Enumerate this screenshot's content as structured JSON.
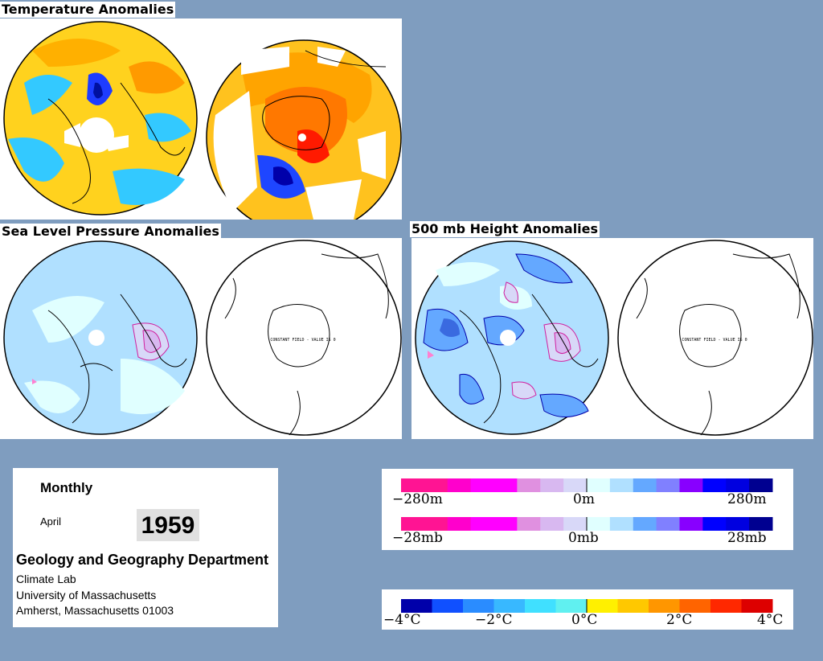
{
  "sections": {
    "temperature_title": "Temperature Anomalies",
    "slp_title": "Sea Level Pressure Anomalies",
    "height_title": "500 mb Height Anomalies"
  },
  "maps": {
    "constant_field_note": "CONSTANT FIELD - VALUE IS 0"
  },
  "info": {
    "period": "Monthly",
    "month": "April",
    "year": "1959",
    "department": "Geology and Geography Department",
    "lab": "Climate Lab",
    "university": "University of Massachusetts",
    "address": "Amherst, Massachusetts 01003"
  },
  "height_legend": {
    "labels": [
      "−280m",
      "0m",
      "280m"
    ],
    "colors": [
      "#ff1493",
      "#ff1493",
      "#ff00cc",
      "#ff00ff",
      "#ff00ff",
      "#e090e0",
      "#d8b8f0",
      "#d8d8f8",
      "#e0ffff",
      "#b0e0ff",
      "#64a8ff",
      "#8080ff",
      "#8800ff",
      "#0000ff",
      "#0000e0",
      "#000090"
    ]
  },
  "pressure_legend": {
    "labels": [
      "−28mb",
      "0mb",
      "28mb"
    ],
    "colors": [
      "#ff1493",
      "#ff1493",
      "#ff00cc",
      "#ff00ff",
      "#ff00ff",
      "#e090e0",
      "#d8b8f0",
      "#d8d8f8",
      "#e0ffff",
      "#b0e0ff",
      "#64a8ff",
      "#8080ff",
      "#8800ff",
      "#0000ff",
      "#0000e0",
      "#000090"
    ]
  },
  "temp_legend": {
    "labels": [
      "−4°C",
      "−2°C",
      "0°C",
      "2°C",
      "4°C"
    ],
    "colors": [
      "#0000aa",
      "#1050ff",
      "#2a8cff",
      "#38b8ff",
      "#40e0ff",
      "#60f0f0",
      "#fff000",
      "#ffc800",
      "#ff9600",
      "#ff6400",
      "#ff2800",
      "#dd0000"
    ]
  }
}
